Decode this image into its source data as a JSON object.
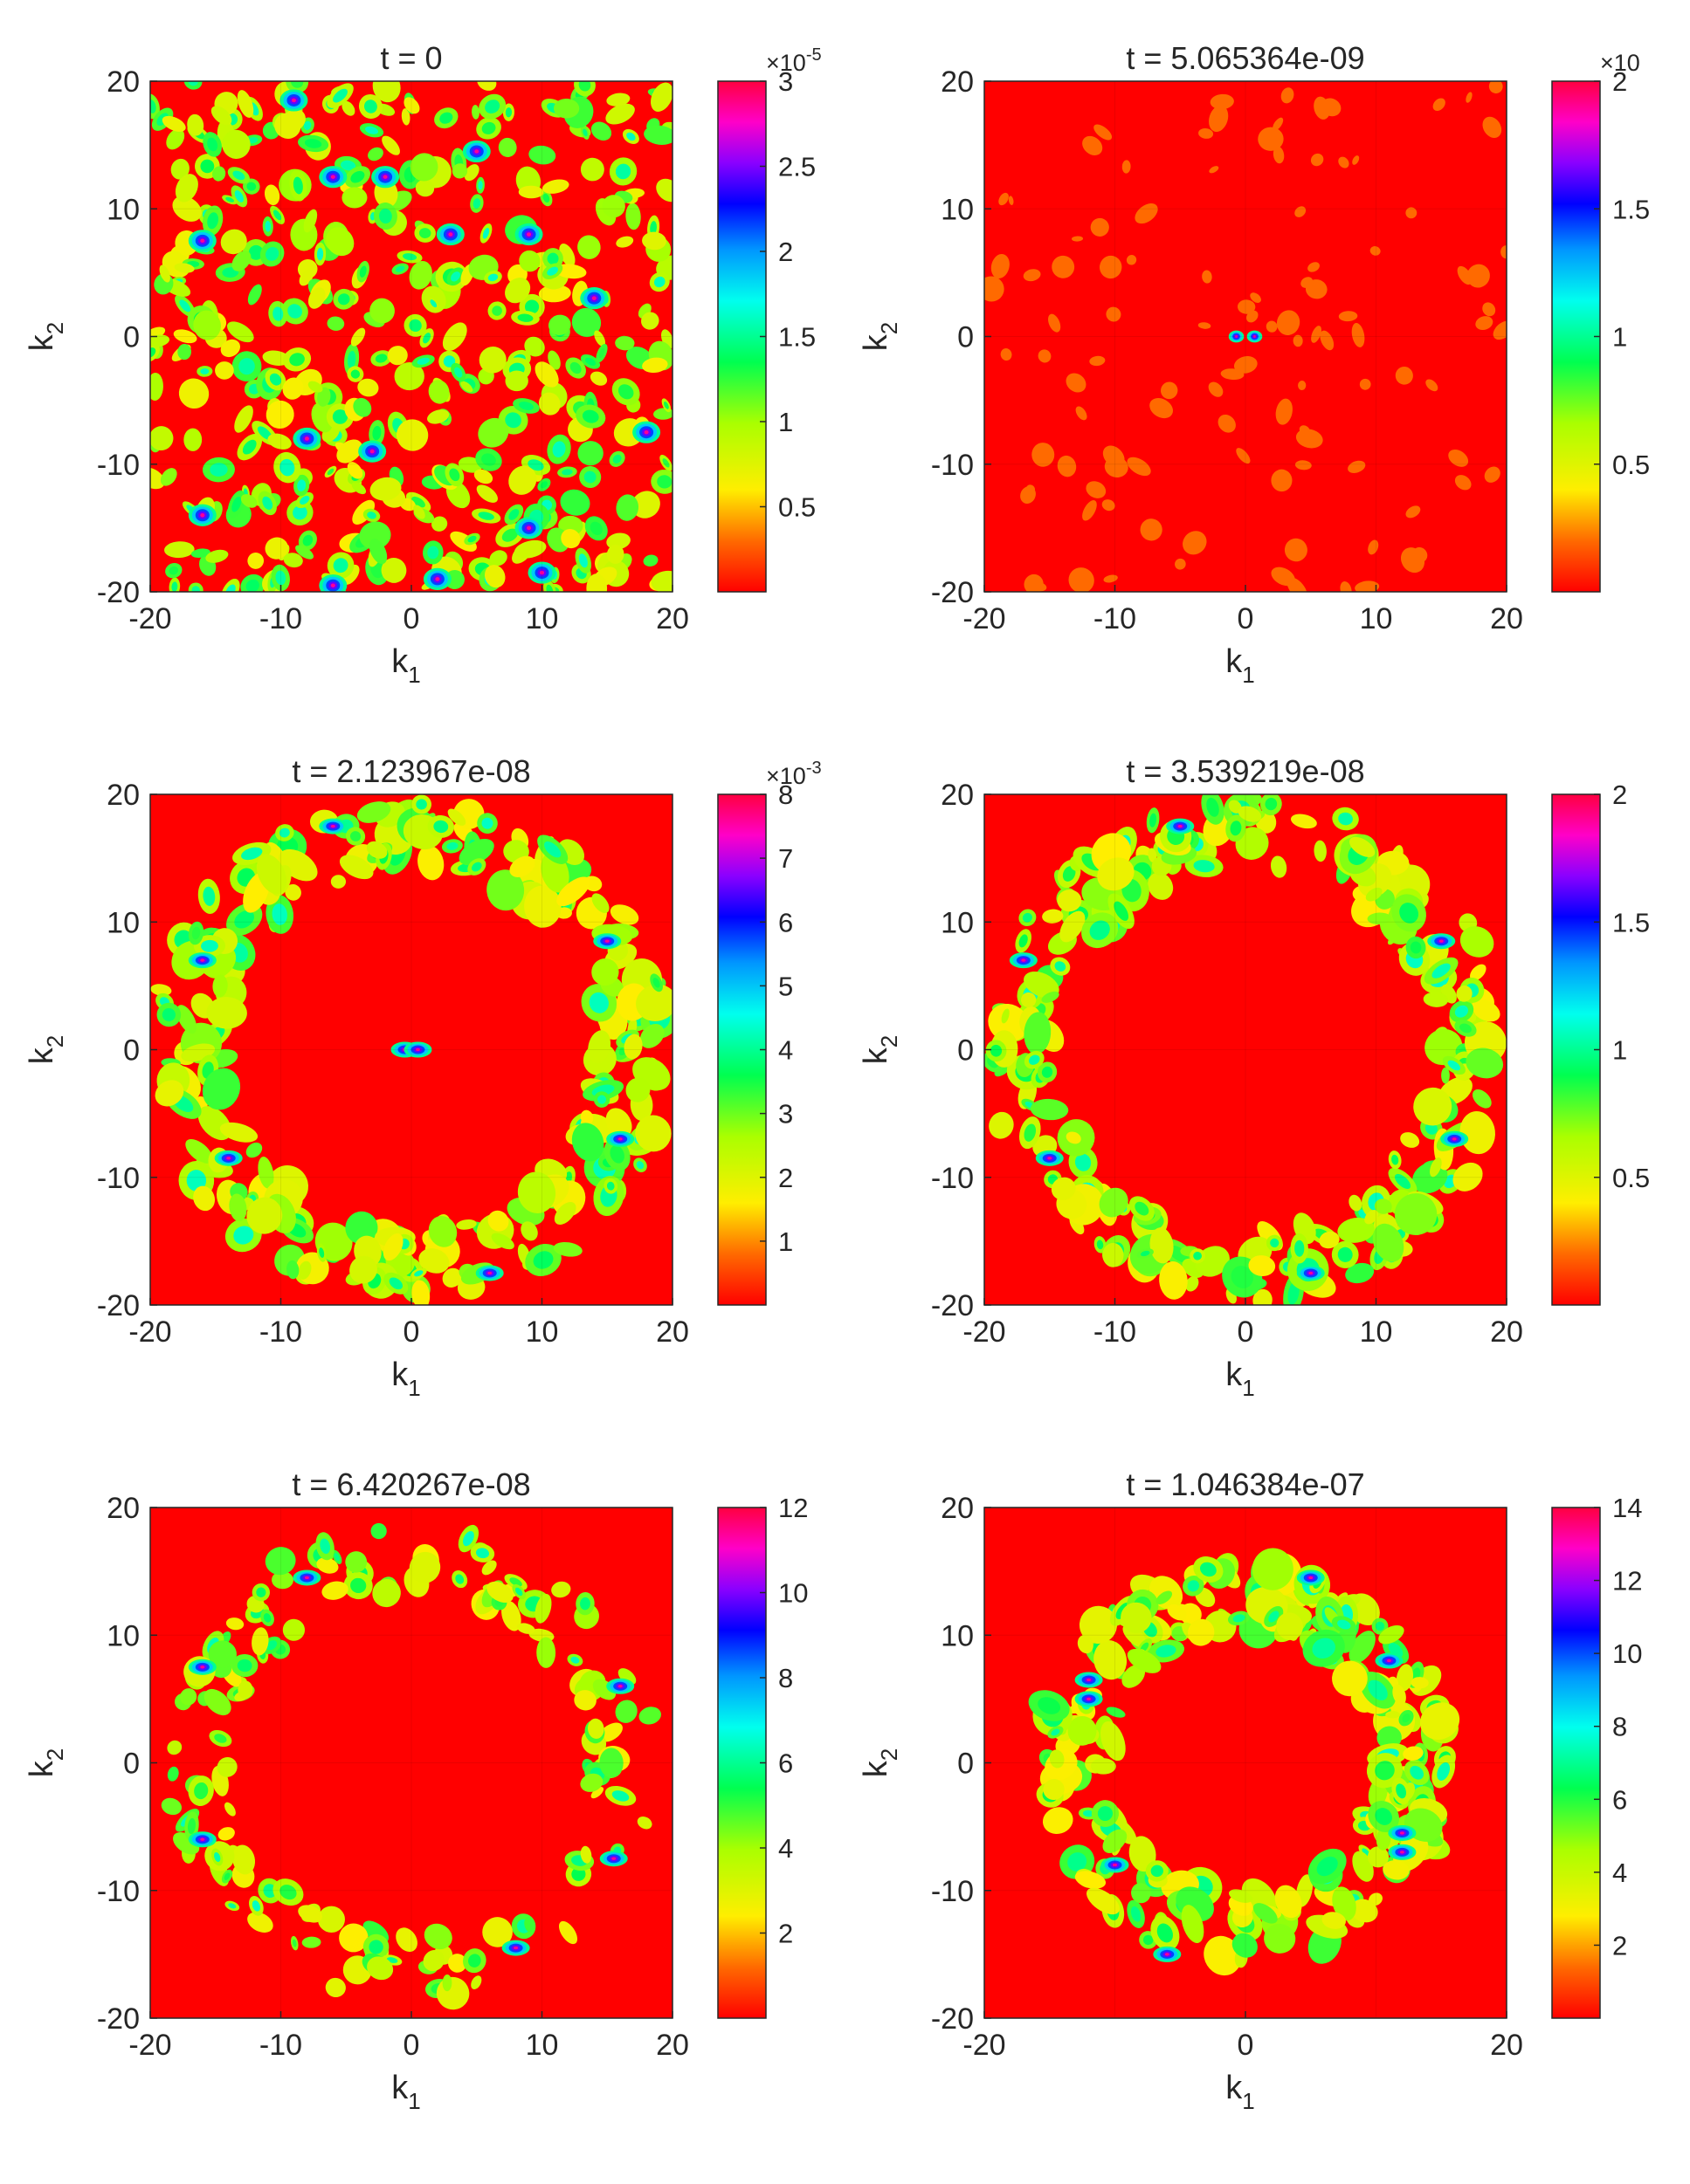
{
  "figure": {
    "background": "#ffffff",
    "map_base_color": "#ff0000"
  },
  "chart_data": [
    {
      "type": "heatmap",
      "title": "t = 0",
      "xlabel": "k",
      "xlabel_sub": "1",
      "ylabel": "k",
      "ylabel_sub": "2",
      "xlim": [
        -20,
        20
      ],
      "ylim": [
        -20,
        20
      ],
      "xticks": [
        "-20",
        "-10",
        "0",
        "10",
        "20"
      ],
      "yticks": [
        "-20",
        "-10",
        "0",
        "10",
        "20"
      ],
      "colorbar": {
        "multiplier": "×10",
        "exponent": "-5",
        "range": [
          0,
          3
        ],
        "ticks": [
          {
            "value": 0.5,
            "label": "0.5"
          },
          {
            "value": 1,
            "label": "1"
          },
          {
            "value": 1.5,
            "label": "1.5"
          },
          {
            "value": 2,
            "label": "2"
          },
          {
            "value": 2.5,
            "label": "2.5"
          },
          {
            "value": 3,
            "label": "3"
          }
        ]
      },
      "pattern": "scattered",
      "ring_radius": null,
      "blob_density": "high",
      "peak_points": [
        [
          -16,
          7.5
        ],
        [
          -9,
          18.5
        ],
        [
          -6,
          12.5
        ],
        [
          -2,
          12.5
        ],
        [
          3,
          8
        ],
        [
          9,
          8
        ],
        [
          -8,
          -8
        ],
        [
          -16,
          -14
        ],
        [
          -3,
          -9
        ],
        [
          9,
          -15
        ],
        [
          18,
          -7.5
        ],
        [
          -6,
          -19.5
        ],
        [
          2,
          -19
        ],
        [
          10,
          -18.5
        ],
        [
          5,
          14.5
        ],
        [
          14,
          3
        ]
      ]
    },
    {
      "type": "heatmap",
      "title": "t = 5.065364e-09",
      "xlabel": "k",
      "xlabel_sub": "1",
      "ylabel": "k",
      "ylabel_sub": "2",
      "xlim": [
        -20,
        20
      ],
      "ylim": [
        -20,
        20
      ],
      "xticks": [
        "-20",
        "-10",
        "0",
        "10",
        "20"
      ],
      "yticks": [
        "-20",
        "-10",
        "0",
        "10",
        "20"
      ],
      "colorbar": {
        "multiplier": "×10",
        "exponent": "",
        "range": [
          0,
          2
        ],
        "ticks": [
          {
            "value": 0.5,
            "label": "0.5"
          },
          {
            "value": 1,
            "label": "1"
          },
          {
            "value": 1.5,
            "label": "1.5"
          },
          {
            "value": 2,
            "label": "2"
          }
        ]
      },
      "pattern": "sparse",
      "ring_radius": null,
      "blob_density": "low",
      "peak_points": [
        [
          -0.7,
          0
        ],
        [
          0.7,
          0
        ]
      ]
    },
    {
      "type": "heatmap",
      "title": "t = 2.123967e-08",
      "xlabel": "k",
      "xlabel_sub": "1",
      "ylabel": "k",
      "ylabel_sub": "2",
      "xlim": [
        -20,
        20
      ],
      "ylim": [
        -20,
        20
      ],
      "xticks": [
        "-20",
        "-10",
        "0",
        "10",
        "20"
      ],
      "yticks": [
        "-20",
        "-10",
        "0",
        "10",
        "20"
      ],
      "colorbar": {
        "multiplier": "×10",
        "exponent": "-3",
        "range": [
          0,
          8
        ],
        "ticks": [
          {
            "value": 1,
            "label": "1"
          },
          {
            "value": 2,
            "label": "2"
          },
          {
            "value": 3,
            "label": "3"
          },
          {
            "value": 4,
            "label": "4"
          },
          {
            "value": 5,
            "label": "5"
          },
          {
            "value": 6,
            "label": "6"
          },
          {
            "value": 7,
            "label": "7"
          },
          {
            "value": 8,
            "label": "8"
          }
        ]
      },
      "pattern": "ring",
      "ring_radius": 17,
      "blob_density": "dense",
      "peak_points": [
        [
          -6,
          17.5
        ],
        [
          -16,
          7
        ],
        [
          15,
          8.5
        ],
        [
          -14,
          -8.5
        ],
        [
          16,
          -7
        ],
        [
          6,
          -17.5
        ],
        [
          -0.5,
          0
        ],
        [
          0.5,
          0
        ]
      ]
    },
    {
      "type": "heatmap",
      "title": "t = 3.539219e-08",
      "xlabel": "k",
      "xlabel_sub": "1",
      "ylabel": "k",
      "ylabel_sub": "2",
      "xlim": [
        -20,
        20
      ],
      "ylim": [
        -20,
        20
      ],
      "xticks": [
        "-20",
        "-10",
        "0",
        "10",
        "20"
      ],
      "yticks": [
        "-20",
        "-10",
        "0",
        "10",
        "20"
      ],
      "colorbar": {
        "multiplier": "",
        "exponent": "",
        "range": [
          0,
          2
        ],
        "ticks": [
          {
            "value": 0.5,
            "label": "0.5"
          },
          {
            "value": 1,
            "label": "1"
          },
          {
            "value": 1.5,
            "label": "1.5"
          },
          {
            "value": 2,
            "label": "2"
          }
        ]
      },
      "pattern": "ring",
      "ring_radius": 17,
      "blob_density": "dense",
      "peak_points": [
        [
          -5,
          17.5
        ],
        [
          15,
          8.5
        ],
        [
          -15,
          -8.5
        ],
        [
          5,
          -17.5
        ],
        [
          -17,
          7
        ],
        [
          16,
          -7
        ]
      ]
    },
    {
      "type": "heatmap",
      "title": "t = 6.420267e-08",
      "xlabel": "k",
      "xlabel_sub": "1",
      "ylabel": "k",
      "ylabel_sub": "2",
      "xlim": [
        -20,
        20
      ],
      "ylim": [
        -20,
        20
      ],
      "xticks": [
        "-20",
        "-10",
        "0",
        "10",
        "20"
      ],
      "yticks": [
        "-20",
        "-10",
        "0",
        "10",
        "20"
      ],
      "colorbar": {
        "multiplier": "",
        "exponent": "",
        "range": [
          0,
          12
        ],
        "ticks": [
          {
            "value": 2,
            "label": "2"
          },
          {
            "value": 4,
            "label": "4"
          },
          {
            "value": 6,
            "label": "6"
          },
          {
            "value": 8,
            "label": "8"
          },
          {
            "value": 10,
            "label": "10"
          },
          {
            "value": 12,
            "label": "12"
          }
        ]
      },
      "pattern": "ring",
      "ring_radius": 16,
      "blob_density": "medium",
      "peak_points": [
        [
          -16,
          7.5
        ],
        [
          16,
          6
        ],
        [
          -16,
          -6
        ],
        [
          15.5,
          -7.5
        ],
        [
          -8,
          14.5
        ],
        [
          8,
          -14.5
        ]
      ]
    },
    {
      "type": "heatmap",
      "title": "t = 1.046384e-07",
      "xlabel": "k",
      "xlabel_sub": "1",
      "ylabel": "k",
      "ylabel_sub": "2",
      "xlim": [
        -20,
        20
      ],
      "ylim": [
        -20,
        20
      ],
      "xticks": [
        "-20",
        "0",
        "20"
      ],
      "yticks": [
        "-20",
        "-10",
        "0",
        "10",
        "20"
      ],
      "colorbar": {
        "multiplier": "",
        "exponent": "",
        "range": [
          0,
          14
        ],
        "ticks": [
          {
            "value": 2,
            "label": "2"
          },
          {
            "value": 4,
            "label": "4"
          },
          {
            "value": 6,
            "label": "6"
          },
          {
            "value": 8,
            "label": "8"
          },
          {
            "value": 10,
            "label": "10"
          },
          {
            "value": 12,
            "label": "12"
          },
          {
            "value": 14,
            "label": "14"
          }
        ]
      },
      "pattern": "ring",
      "ring_radius": 13,
      "blob_density": "dense",
      "peak_points": [
        [
          5,
          14.5
        ],
        [
          -12,
          6.5
        ],
        [
          -12,
          5
        ],
        [
          11,
          8
        ],
        [
          12,
          -5.5
        ],
        [
          12,
          -7
        ],
        [
          -6,
          -15
        ],
        [
          -10,
          -8
        ]
      ]
    }
  ]
}
